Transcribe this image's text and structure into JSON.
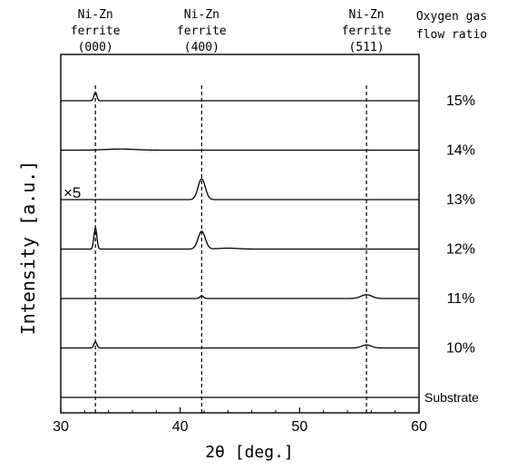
{
  "chart_data": {
    "type": "line",
    "xlabel": "2θ [deg.]",
    "ylabel": "Intensity [a.u.]",
    "xlim": [
      30,
      60
    ],
    "xticks": [
      30,
      40,
      50,
      60
    ],
    "grid": false,
    "legend_title": "Oxygen gas\nflow ratio",
    "scale_note": "×5",
    "reference_lines": [
      {
        "x": 32.9,
        "label_line1": "Ni-Zn",
        "label_line2": "ferrite",
        "label_line3": "(000)"
      },
      {
        "x": 41.8,
        "label_line1": "Ni-Zn",
        "label_line2": "ferrite",
        "label_line3": "(400)"
      },
      {
        "x": 55.6,
        "label_line1": "Ni-Zn",
        "label_line2": "ferrite",
        "label_line3": "(511)"
      }
    ],
    "series": [
      {
        "name": "15%",
        "baseline": 6,
        "peaks": [
          {
            "x": 32.9,
            "height": 1.1,
            "width": 0.12
          }
        ]
      },
      {
        "name": "14%",
        "baseline": 5,
        "peaks": [
          {
            "x": 35.0,
            "height": 0.15,
            "width": 1.2
          }
        ]
      },
      {
        "name": "13%",
        "baseline": 4,
        "peaks": [
          {
            "x": 41.8,
            "height": 2.7,
            "width": 0.3
          }
        ]
      },
      {
        "name": "12%",
        "baseline": 3,
        "peaks": [
          {
            "x": 32.9,
            "height": 2.8,
            "width": 0.12
          },
          {
            "x": 41.8,
            "height": 2.3,
            "width": 0.3
          },
          {
            "x": 44.0,
            "height": 0.12,
            "width": 0.8
          }
        ]
      },
      {
        "name": "11%",
        "baseline": 2,
        "peaks": [
          {
            "x": 41.8,
            "height": 0.35,
            "width": 0.15
          },
          {
            "x": 55.6,
            "height": 0.5,
            "width": 0.45
          }
        ]
      },
      {
        "name": "10%",
        "baseline": 1,
        "peaks": [
          {
            "x": 32.9,
            "height": 0.8,
            "width": 0.12
          },
          {
            "x": 55.6,
            "height": 0.4,
            "width": 0.4
          }
        ]
      },
      {
        "name": "Substrate",
        "baseline": 0,
        "peaks": []
      }
    ]
  }
}
